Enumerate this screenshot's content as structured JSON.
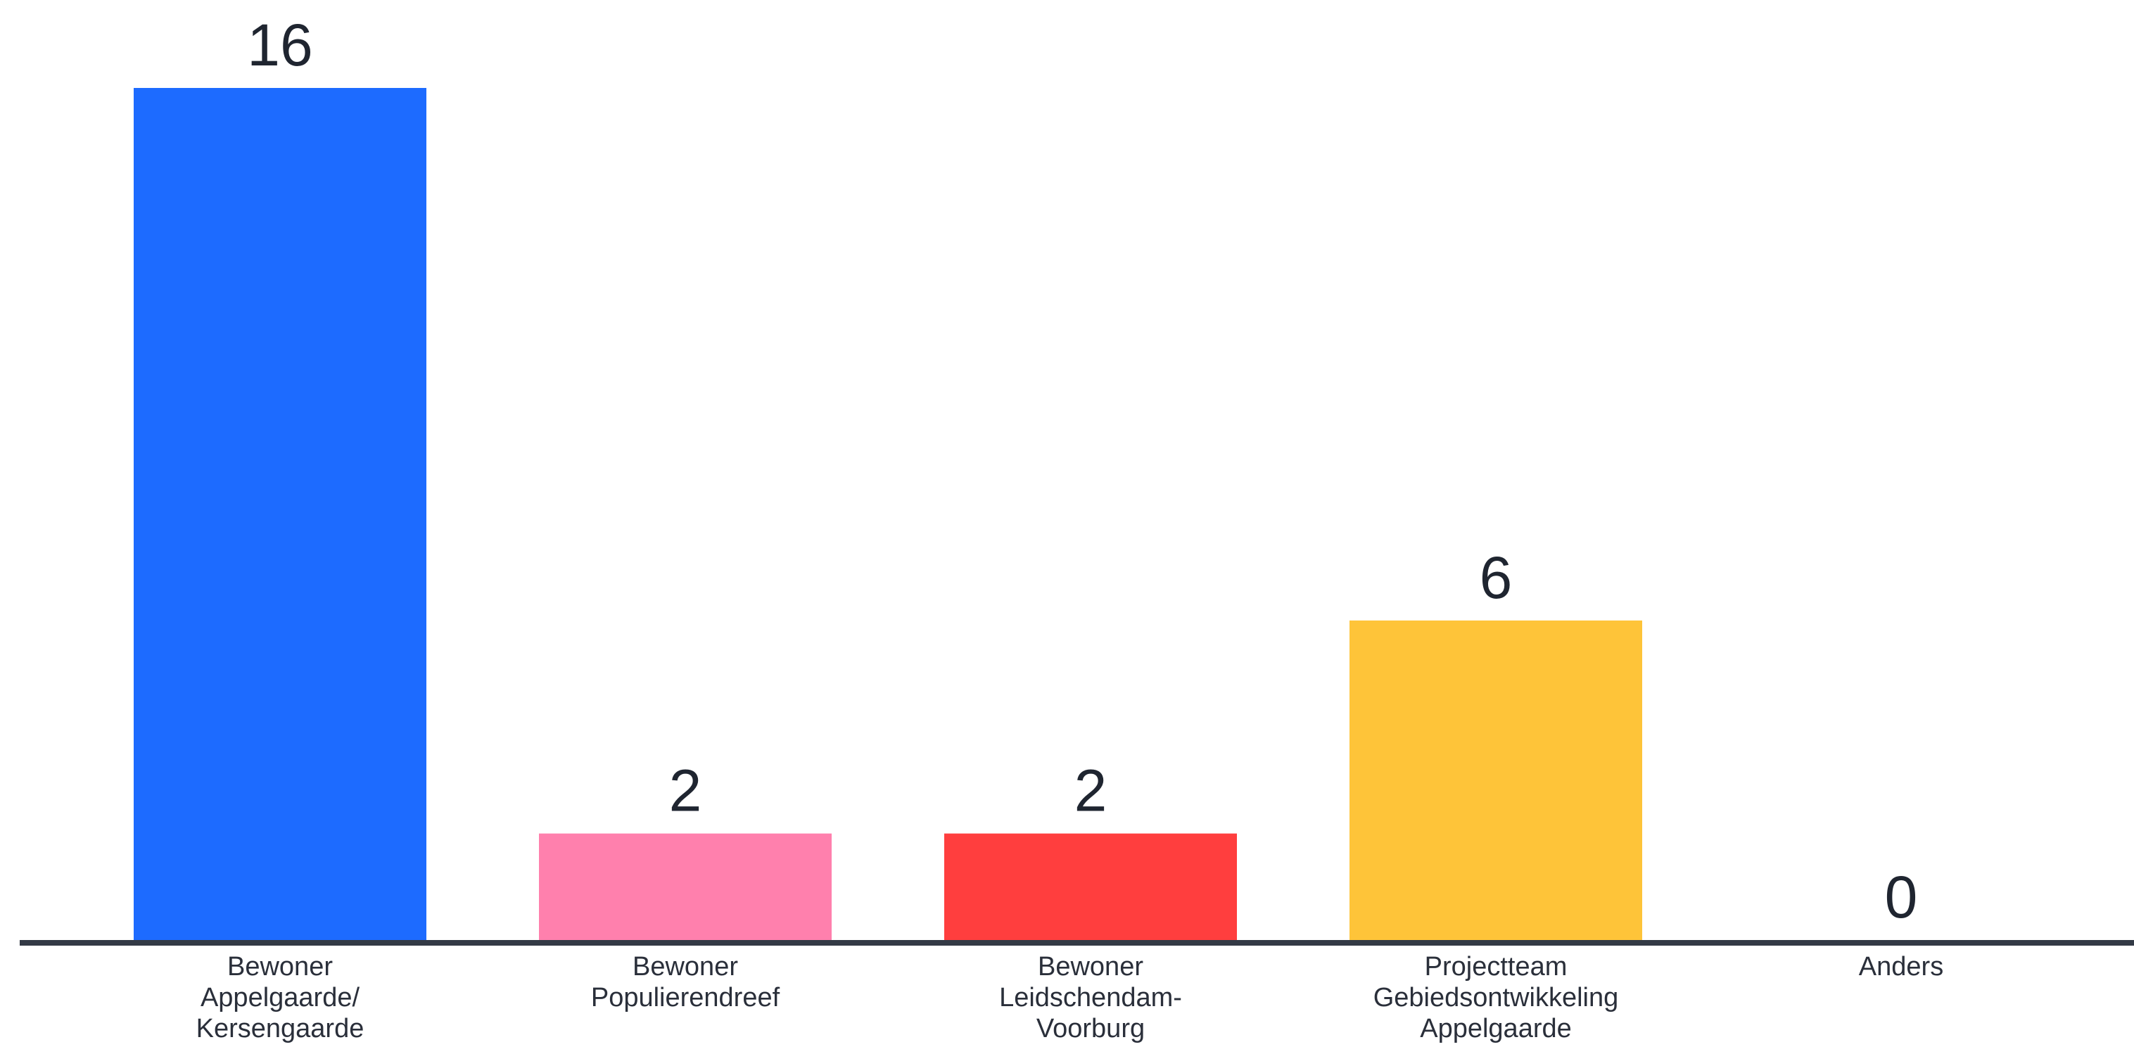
{
  "chart_data": {
    "type": "bar",
    "categories": [
      [
        "Bewoner",
        "Appelgaarde/",
        "Kersengaarde"
      ],
      [
        "Bewoner",
        "Populierendreef"
      ],
      [
        "Bewoner",
        "Leidschendam-",
        "Voorburg"
      ],
      [
        "Projectteam",
        "Gebiedsontwikkeling",
        "Appelgaarde"
      ],
      [
        "Anders"
      ]
    ],
    "values": [
      16,
      2,
      2,
      6,
      0
    ],
    "colors": [
      "#1d6bff",
      "#ff80ad",
      "#ff3e3e",
      "#fec439",
      "#cccccc"
    ],
    "axis_color": "#333a45",
    "ylim": [
      0,
      16
    ],
    "grid": false,
    "legend": "none",
    "data_labels": true
  }
}
